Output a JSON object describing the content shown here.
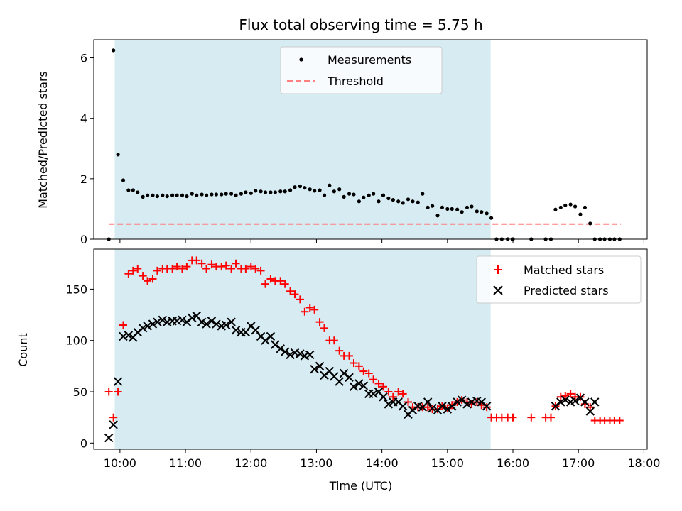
{
  "title": "Flux total observing time = 5.75 h",
  "colors": {
    "band": "#add8e6",
    "measure": "#000000",
    "threshold": "#ff7f7f",
    "matched": "#ff0000",
    "predicted": "#000000"
  },
  "chart_data": [
    {
      "type": "scatter",
      "ylabel": "Matched/Predicted stars",
      "xlim": [
        9.6,
        18.05
      ],
      "ylim": [
        0,
        6.6
      ],
      "yticks": [
        0,
        2,
        4,
        6
      ],
      "grid": false,
      "legend": "top-center",
      "shaded_span": [
        9.92,
        15.66
      ],
      "threshold": {
        "name": "Threshold",
        "y": 0.5,
        "x": [
          9.83,
          17.65
        ]
      },
      "series": [
        {
          "name": "Measurements",
          "x": [
            9.83,
            9.9,
            9.97,
            10.05,
            10.13,
            10.2,
            10.27,
            10.35,
            10.42,
            10.5,
            10.57,
            10.65,
            10.72,
            10.8,
            10.87,
            10.95,
            11.02,
            11.1,
            11.17,
            11.25,
            11.32,
            11.4,
            11.47,
            11.55,
            11.62,
            11.7,
            11.77,
            11.85,
            11.92,
            12.0,
            12.07,
            12.15,
            12.22,
            12.3,
            12.37,
            12.45,
            12.52,
            12.6,
            12.67,
            12.75,
            12.82,
            12.9,
            12.97,
            13.05,
            13.12,
            13.2,
            13.27,
            13.35,
            13.42,
            13.5,
            13.57,
            13.65,
            13.72,
            13.8,
            13.87,
            13.95,
            14.02,
            14.1,
            14.17,
            14.25,
            14.32,
            14.4,
            14.47,
            14.55,
            14.62,
            14.7,
            14.77,
            14.85,
            14.92,
            15.0,
            15.07,
            15.15,
            15.22,
            15.3,
            15.37,
            15.45,
            15.52,
            15.6,
            15.67,
            15.75,
            15.83,
            15.92,
            16.0,
            16.28,
            16.5,
            16.58,
            16.65,
            16.73,
            16.8,
            16.88,
            16.95,
            17.03,
            17.1,
            17.18,
            17.25,
            17.33,
            17.4,
            17.48,
            17.55,
            17.63
          ],
          "y": [
            0,
            6.25,
            2.8,
            1.95,
            1.62,
            1.62,
            1.55,
            1.4,
            1.45,
            1.45,
            1.42,
            1.45,
            1.42,
            1.45,
            1.45,
            1.45,
            1.42,
            1.5,
            1.45,
            1.48,
            1.45,
            1.48,
            1.48,
            1.48,
            1.5,
            1.5,
            1.45,
            1.5,
            1.55,
            1.52,
            1.6,
            1.58,
            1.55,
            1.55,
            1.55,
            1.58,
            1.58,
            1.62,
            1.72,
            1.75,
            1.7,
            1.65,
            1.6,
            1.62,
            1.45,
            1.78,
            1.58,
            1.65,
            1.4,
            1.5,
            1.48,
            1.25,
            1.38,
            1.45,
            1.5,
            1.25,
            1.45,
            1.35,
            1.3,
            1.25,
            1.2,
            1.32,
            1.25,
            1.22,
            1.5,
            1.05,
            1.1,
            0.78,
            1.05,
            1.0,
            1.0,
            0.98,
            0.9,
            1.05,
            1.08,
            0.92,
            0.9,
            0.85,
            0.7,
            0,
            0,
            0,
            0,
            0,
            0,
            0,
            0.98,
            1.05,
            1.12,
            1.15,
            1.08,
            0.82,
            1.05,
            0.52,
            0,
            0,
            0,
            0,
            0,
            0
          ]
        }
      ]
    },
    {
      "type": "scatter",
      "xlabel": "Time (UTC)",
      "ylabel": "Count",
      "xlim": [
        9.6,
        18.05
      ],
      "ylim": [
        -6,
        189
      ],
      "yticks": [
        0,
        50,
        100,
        150
      ],
      "xticks": [
        "10:00",
        "11:00",
        "12:00",
        "13:00",
        "14:00",
        "15:00",
        "16:00",
        "17:00",
        "18:00"
      ],
      "grid": false,
      "legend": "top-right",
      "shaded_span": [
        9.92,
        15.66
      ],
      "series": [
        {
          "name": "Matched stars",
          "x": [
            9.83,
            9.9,
            9.97,
            10.05,
            10.13,
            10.2,
            10.27,
            10.35,
            10.42,
            10.5,
            10.57,
            10.65,
            10.72,
            10.8,
            10.87,
            10.95,
            11.02,
            11.1,
            11.17,
            11.25,
            11.32,
            11.4,
            11.47,
            11.55,
            11.62,
            11.7,
            11.77,
            11.85,
            11.92,
            12.0,
            12.07,
            12.15,
            12.22,
            12.3,
            12.37,
            12.45,
            12.52,
            12.6,
            12.67,
            12.75,
            12.82,
            12.9,
            12.97,
            13.05,
            13.12,
            13.2,
            13.27,
            13.35,
            13.42,
            13.5,
            13.57,
            13.65,
            13.72,
            13.8,
            13.87,
            13.95,
            14.02,
            14.1,
            14.17,
            14.25,
            14.32,
            14.4,
            14.47,
            14.55,
            14.62,
            14.7,
            14.77,
            14.85,
            14.92,
            15.0,
            15.07,
            15.15,
            15.22,
            15.3,
            15.37,
            15.45,
            15.52,
            15.6,
            15.67,
            15.75,
            15.83,
            15.92,
            16.0,
            16.28,
            16.5,
            16.58,
            16.65,
            16.73,
            16.8,
            16.88,
            16.95,
            17.03,
            17.1,
            17.18,
            17.25,
            17.33,
            17.4,
            17.48,
            17.55,
            17.63
          ],
          "y": [
            50,
            25,
            50,
            115,
            165,
            168,
            170,
            163,
            158,
            160,
            168,
            170,
            170,
            170,
            172,
            170,
            172,
            178,
            178,
            175,
            170,
            174,
            172,
            172,
            173,
            170,
            175,
            170,
            170,
            172,
            170,
            168,
            155,
            160,
            158,
            158,
            155,
            148,
            145,
            140,
            128,
            132,
            130,
            118,
            112,
            100,
            100,
            90,
            85,
            85,
            78,
            75,
            70,
            68,
            62,
            58,
            55,
            50,
            45,
            50,
            48,
            40,
            35,
            35,
            35,
            35,
            33,
            33,
            36,
            34,
            37,
            40,
            42,
            40,
            38,
            40,
            37,
            35,
            25,
            25,
            25,
            25,
            25,
            25,
            25,
            25,
            36,
            45,
            46,
            48,
            45,
            45,
            38,
            35,
            22,
            22,
            22,
            22,
            22,
            22
          ]
        },
        {
          "name": "Predicted stars",
          "x": [
            9.83,
            9.9,
            9.97,
            10.05,
            10.13,
            10.2,
            10.27,
            10.35,
            10.42,
            10.5,
            10.57,
            10.65,
            10.72,
            10.8,
            10.87,
            10.95,
            11.02,
            11.1,
            11.17,
            11.25,
            11.32,
            11.4,
            11.47,
            11.55,
            11.62,
            11.7,
            11.77,
            11.85,
            11.92,
            12.0,
            12.07,
            12.15,
            12.22,
            12.3,
            12.37,
            12.45,
            12.52,
            12.6,
            12.67,
            12.75,
            12.82,
            12.9,
            12.97,
            13.05,
            13.12,
            13.2,
            13.27,
            13.35,
            13.42,
            13.5,
            13.57,
            13.65,
            13.72,
            13.8,
            13.87,
            13.95,
            14.02,
            14.1,
            14.17,
            14.25,
            14.32,
            14.4,
            14.47,
            14.55,
            14.62,
            14.7,
            14.77,
            14.85,
            14.92,
            15.0,
            15.07,
            15.15,
            15.22,
            15.3,
            15.37,
            15.45,
            15.52,
            15.6,
            16.65,
            16.73,
            16.8,
            16.88,
            16.95,
            17.03,
            17.1,
            17.18,
            17.25
          ],
          "y": [
            5,
            18,
            60,
            104,
            105,
            103,
            108,
            112,
            114,
            116,
            118,
            120,
            118,
            119,
            119,
            120,
            118,
            122,
            124,
            118,
            116,
            119,
            116,
            114,
            115,
            118,
            110,
            108,
            108,
            114,
            110,
            104,
            100,
            104,
            96,
            92,
            89,
            86,
            88,
            87,
            85,
            86,
            72,
            75,
            66,
            70,
            65,
            60,
            68,
            64,
            55,
            58,
            56,
            48,
            48,
            50,
            45,
            38,
            40,
            40,
            36,
            28,
            32,
            36,
            35,
            40,
            34,
            32,
            36,
            33,
            36,
            40,
            42,
            38,
            40,
            41,
            40,
            36,
            36,
            40,
            42,
            40,
            41,
            44,
            40,
            31,
            40
          ]
        }
      ]
    }
  ]
}
